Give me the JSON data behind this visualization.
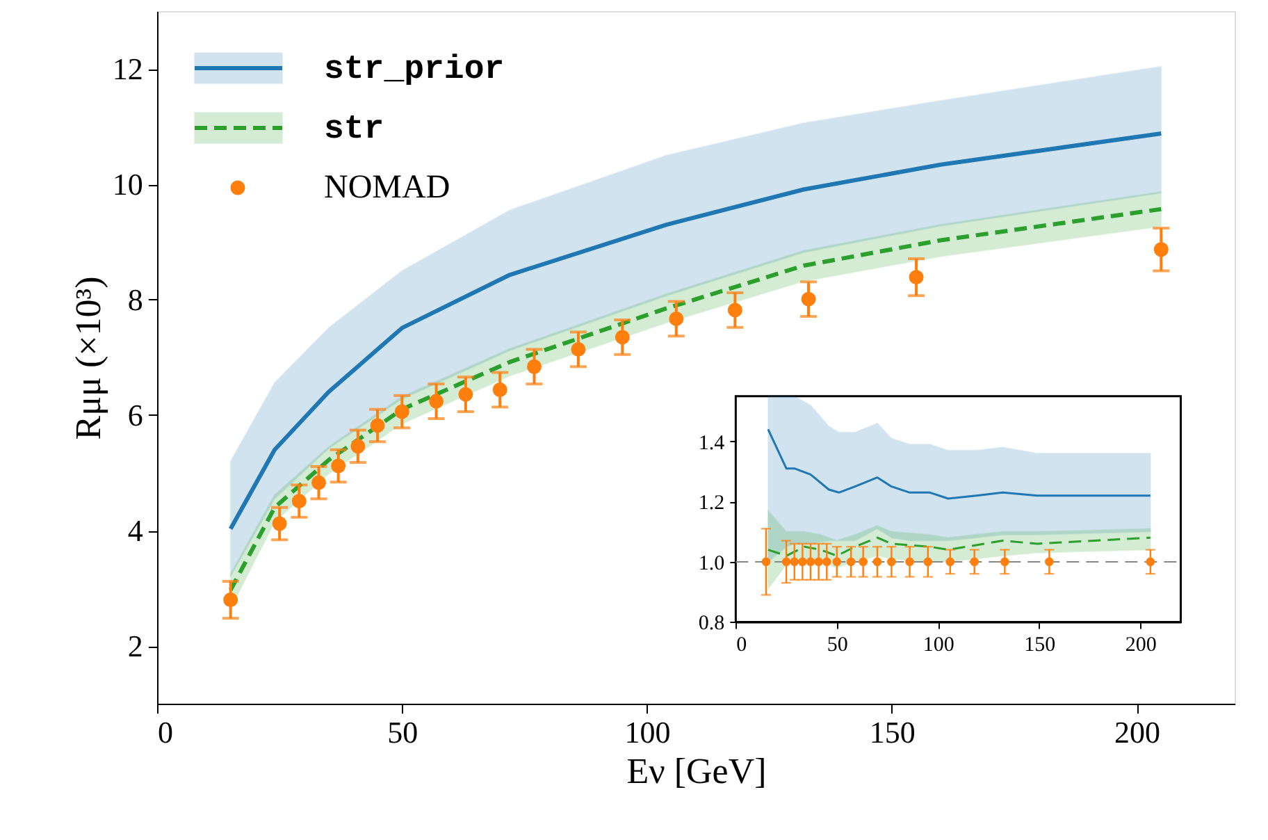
{
  "chart_data": [
    {
      "type": "line",
      "xlabel": "Eν [GeV]",
      "ylabel": "Rμμ (×10³)",
      "xlim": [
        0,
        220
      ],
      "xticks": [
        0,
        50,
        100,
        150,
        200
      ],
      "ylim": [
        1,
        13
      ],
      "yticks": [
        2,
        4,
        6,
        8,
        10,
        12
      ],
      "grid": false,
      "legend": "top left",
      "series": [
        {
          "name": "str_prior",
          "color": "#1f77b4",
          "line_style": "solid",
          "x": [
            15,
            24,
            35,
            50,
            72,
            104,
            132,
            160,
            205
          ],
          "values": [
            4.03,
            5.4,
            6.4,
            7.51,
            8.43,
            9.3,
            9.91,
            10.34,
            10.88
          ],
          "lower": [
            3.21,
            4.55,
            5.42,
            6.28,
            7.12,
            8.07,
            8.82,
            9.28,
            9.85
          ],
          "upper": [
            5.2,
            6.56,
            7.51,
            8.5,
            9.55,
            10.5,
            11.06,
            11.45,
            12.04
          ]
        },
        {
          "name": "str",
          "color": "#2ca02c",
          "line_style": "dashed",
          "x": [
            15,
            24,
            35,
            50,
            72,
            104,
            132,
            160,
            205
          ],
          "values": [
            2.97,
            4.4,
            5.22,
            6.1,
            6.92,
            7.85,
            8.59,
            9.03,
            9.57
          ],
          "lower": [
            2.65,
            4.15,
            4.98,
            5.85,
            6.68,
            7.6,
            8.32,
            8.75,
            9.27
          ],
          "upper": [
            3.25,
            4.62,
            5.45,
            6.32,
            7.15,
            8.1,
            8.85,
            9.3,
            9.87
          ]
        },
        {
          "name": "NOMAD",
          "type": "scatter",
          "color": "#ff7f0e",
          "marker": "circle",
          "x": [
            15,
            25,
            29,
            33,
            37,
            41,
            45,
            50,
            57,
            63,
            70,
            77,
            86,
            95,
            106,
            118,
            133,
            155,
            205
          ],
          "values": [
            2.8,
            4.12,
            4.51,
            4.83,
            5.12,
            5.46,
            5.82,
            6.06,
            6.24,
            6.36,
            6.44,
            6.84,
            7.14,
            7.35,
            7.67,
            7.82,
            8.01,
            8.39,
            8.87
          ],
          "errors": [
            0.32,
            0.28,
            0.28,
            0.28,
            0.28,
            0.28,
            0.28,
            0.28,
            0.3,
            0.3,
            0.3,
            0.3,
            0.3,
            0.3,
            0.3,
            0.3,
            0.3,
            0.32,
            0.37
          ]
        }
      ]
    },
    {
      "type": "line",
      "xlim": [
        0,
        220
      ],
      "xticks": [
        0,
        50,
        100,
        150,
        200
      ],
      "ylim": [
        0.8,
        1.55
      ],
      "yticks": [
        0.8,
        {
          "value": 1.0,
          "label": "1.0"
        },
        1.2,
        1.4
      ],
      "grid": false,
      "ref_lines": [
        {
          "axis": "y",
          "value": 1.0,
          "color": "#888888",
          "line_style": "dashed"
        }
      ],
      "series": [
        {
          "color": "#1f77b4",
          "line_style": "solid",
          "x": [
            16,
            25,
            29,
            37,
            46,
            51,
            59,
            70,
            77,
            86,
            96,
            105,
            119,
            132,
            149,
            205
          ],
          "values": [
            1.44,
            1.31,
            1.31,
            1.29,
            1.24,
            1.23,
            1.25,
            1.28,
            1.25,
            1.23,
            1.23,
            1.21,
            1.22,
            1.23,
            1.22,
            1.22
          ],
          "lower": [
            1.0,
            1.05,
            1.06,
            1.06,
            1.07,
            1.07,
            1.07,
            1.11,
            1.08,
            1.07,
            1.07,
            1.07,
            1.08,
            1.09,
            1.09,
            1.1
          ],
          "upper": [
            1.55,
            1.55,
            1.55,
            1.52,
            1.45,
            1.43,
            1.43,
            1.46,
            1.41,
            1.39,
            1.39,
            1.37,
            1.37,
            1.38,
            1.36,
            1.36
          ]
        },
        {
          "color": "#2ca02c",
          "line_style": "dashed",
          "x": [
            16,
            25,
            34,
            42,
            50,
            59,
            70,
            77,
            96,
            105,
            132,
            149,
            205
          ],
          "values": [
            1.04,
            1.02,
            1.05,
            1.04,
            1.02,
            1.05,
            1.08,
            1.06,
            1.05,
            1.04,
            1.07,
            1.06,
            1.08
          ],
          "lower": [
            0.91,
            0.99,
            1.01,
            1.0,
            0.98,
            1.0,
            1.02,
            1.01,
            1.0,
            1.0,
            1.02,
            1.03,
            1.04
          ],
          "upper": [
            1.17,
            1.1,
            1.1,
            1.09,
            1.07,
            1.09,
            1.12,
            1.1,
            1.09,
            1.08,
            1.1,
            1.1,
            1.11
          ]
        },
        {
          "type": "scatter",
          "color": "#ff7f0e",
          "marker": "circle",
          "x": [
            15,
            25,
            29,
            33,
            37,
            41,
            45,
            50,
            57,
            63,
            70,
            77,
            86,
            95,
            106,
            118,
            133,
            155,
            205
          ],
          "values": [
            1.0,
            1.0,
            1.0,
            1.0,
            1.0,
            1.0,
            1.0,
            1.0,
            1.0,
            1.0,
            1.0,
            1.0,
            1.0,
            1.0,
            1.0,
            1.0,
            1.0,
            1.0,
            1.0
          ],
          "errors": [
            0.11,
            0.07,
            0.06,
            0.06,
            0.06,
            0.06,
            0.06,
            0.05,
            0.05,
            0.05,
            0.05,
            0.05,
            0.05,
            0.05,
            0.04,
            0.04,
            0.04,
            0.04,
            0.04
          ]
        }
      ]
    }
  ]
}
